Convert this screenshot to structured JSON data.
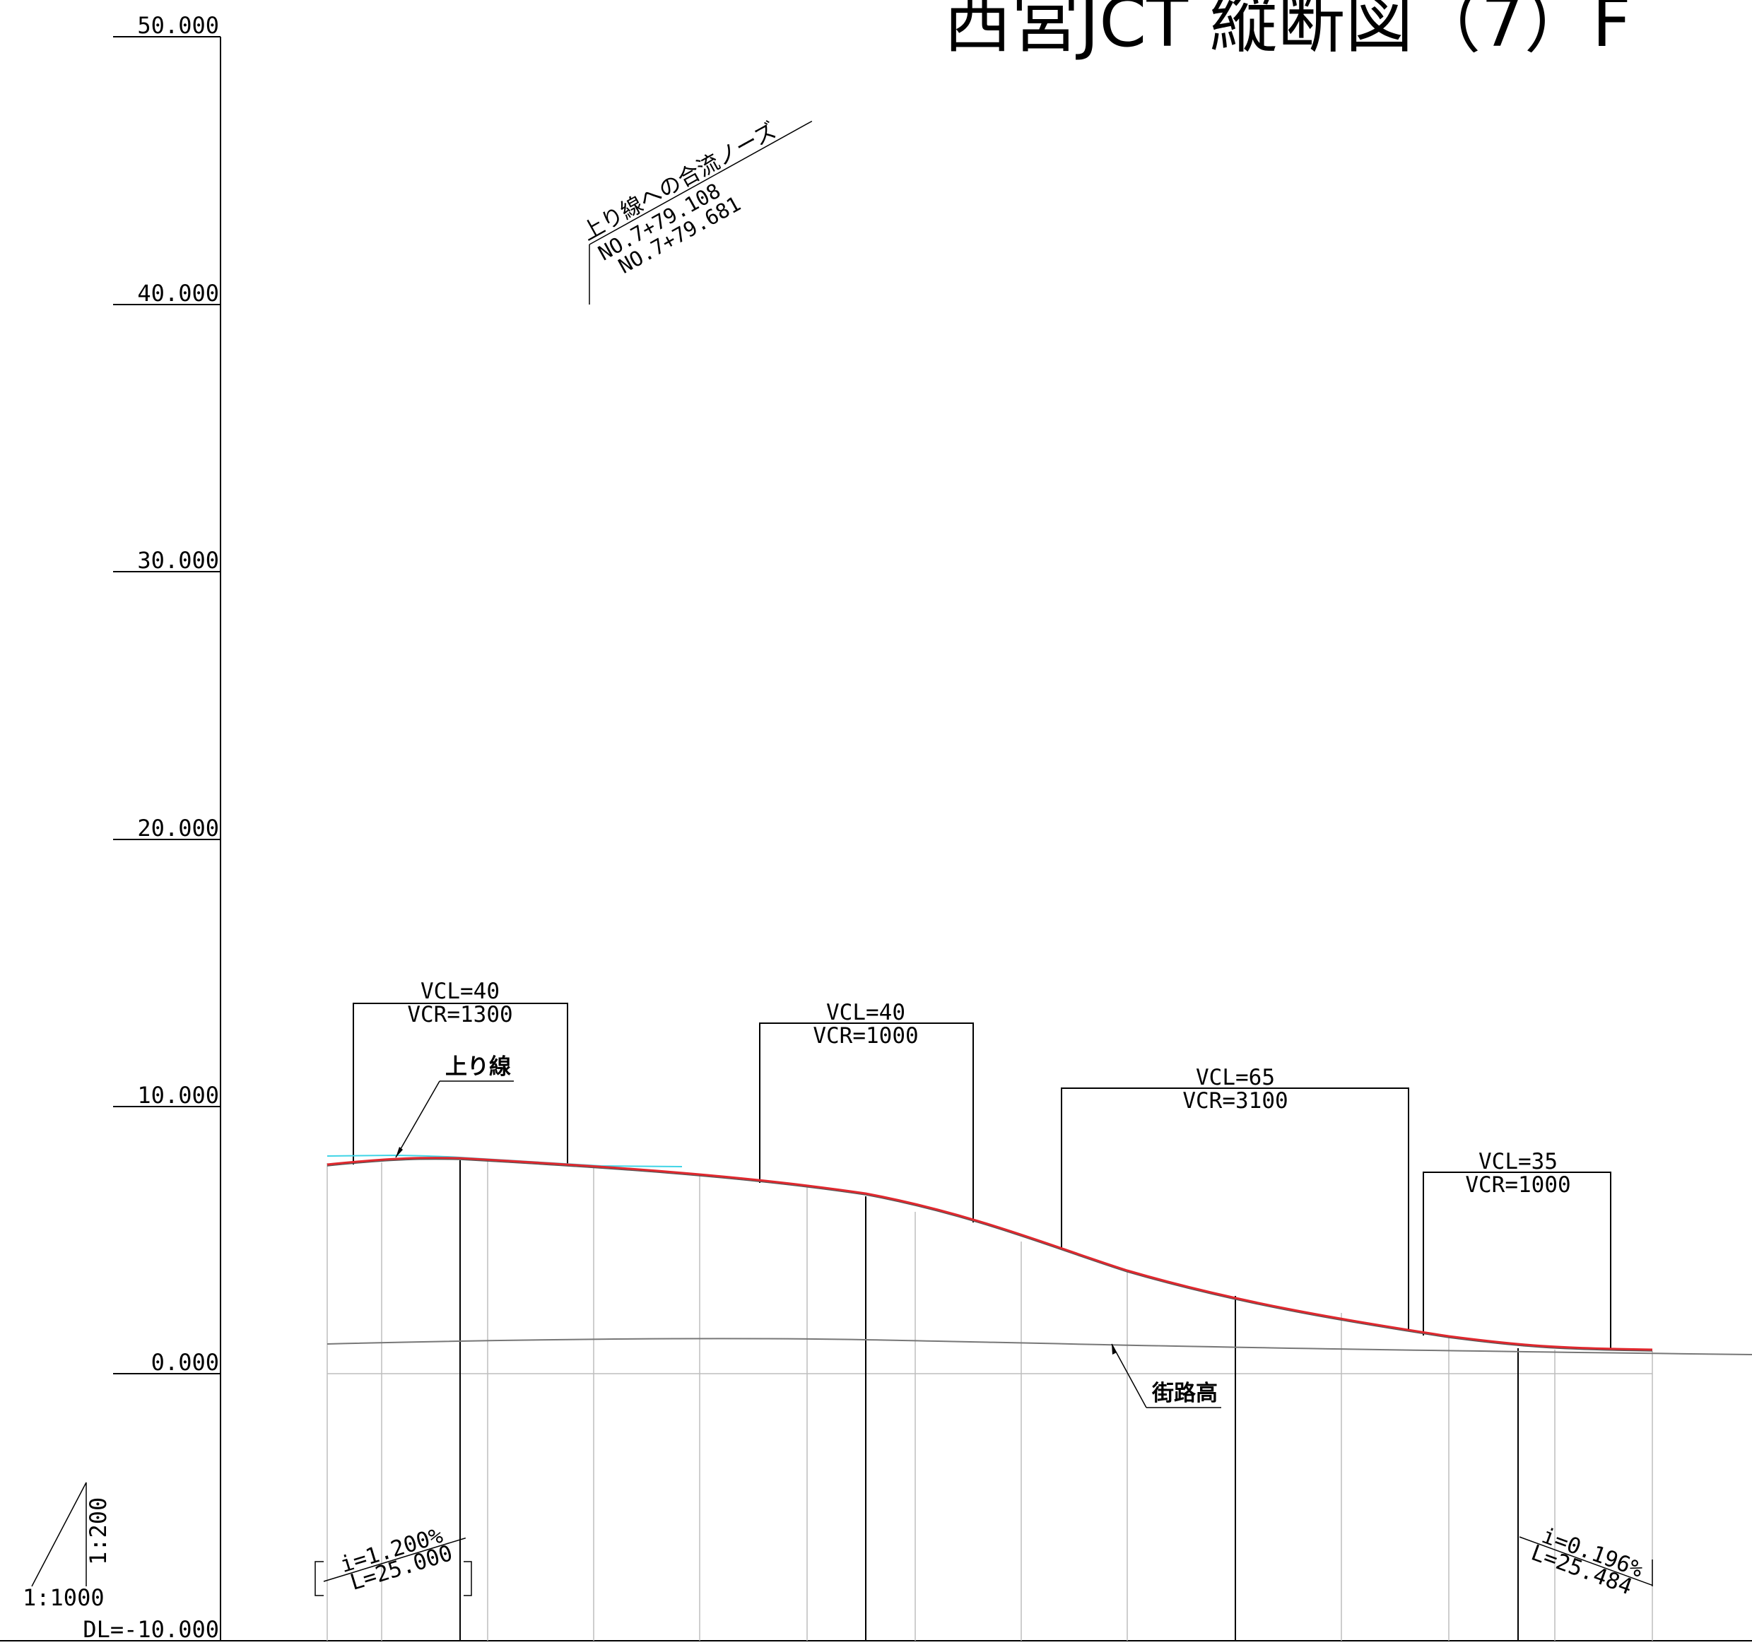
{
  "title": "西宮JCT 縦断図（7）F",
  "axis": {
    "labels": [
      "50.000",
      "40.000",
      "30.000",
      "20.000",
      "10.000",
      "0.000"
    ],
    "datum_label": "DL=-10.000"
  },
  "scale": {
    "horizontal": "1:1000",
    "vertical": "1:200"
  },
  "annotations": {
    "merge_nose": {
      "title": "上り線への合流ノーズ",
      "stations": [
        "NO.7+79.108",
        "NO.7+79.681"
      ]
    },
    "line_label": "上り線",
    "street_label": "街路高"
  },
  "vertical_curves": [
    {
      "vcl": "VCL=40",
      "vcr": "VCR=1300"
    },
    {
      "vcl": "VCL=40",
      "vcr": "VCR=1000"
    },
    {
      "vcl": "VCL=65",
      "vcr": "VCR=3100"
    },
    {
      "vcl": "VCL=35",
      "vcr": "VCR=1000"
    }
  ],
  "grades": [
    {
      "i": "i=1.200%",
      "l": "L=25.000"
    },
    {
      "i": "i=0.196%",
      "l": "L=25.484"
    }
  ],
  "colors": {
    "profile": "#e0282e",
    "upline": "#3fd4e6",
    "ink": "#000000",
    "grid": "#bdbdbd",
    "ground": "#777777"
  },
  "chart_data": {
    "type": "line",
    "ylim": [
      -10,
      50
    ],
    "series": [
      {
        "name": "",
        "points": [
          [
            0,
            7.6
          ],
          [
            2,
            7.8
          ],
          [
            5,
            7.8
          ],
          [
            10,
            7.5
          ],
          [
            20,
            6.9
          ],
          [
            25,
            6.4
          ],
          [
            30,
            5.4
          ],
          [
            35,
            4.3
          ],
          [
            43,
            2.8
          ],
          [
            53,
            1.3
          ],
          [
            58,
            0.8
          ],
          [
            62,
            0.7
          ]
        ]
      },
      {
        "name": "上り線",
        "points": [
          [
            0,
            8.0
          ],
          [
            3,
            8.0
          ],
          [
            6,
            7.8
          ],
          [
            10,
            7.5
          ],
          [
            16,
            7.5
          ]
        ]
      },
      {
        "name": "街路高",
        "points": [
          [
            0,
            1.1
          ],
          [
            15,
            1.2
          ],
          [
            25,
            1.1
          ],
          [
            43,
            0.9
          ],
          [
            62,
            0.6
          ]
        ]
      }
    ]
  }
}
